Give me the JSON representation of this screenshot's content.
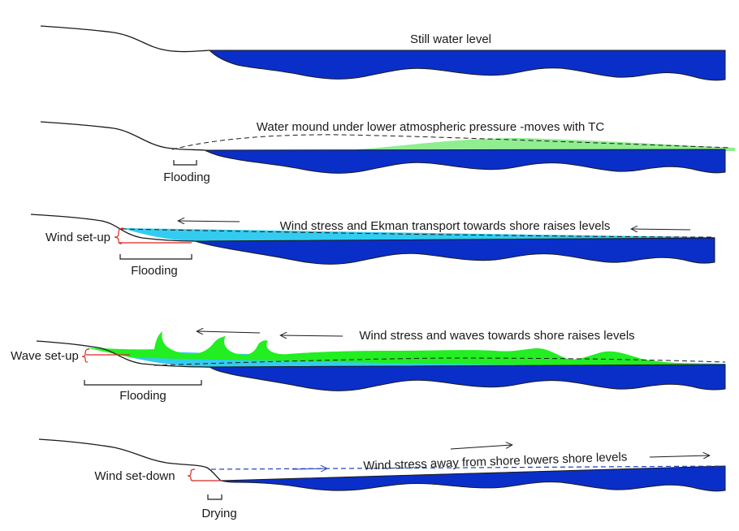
{
  "colors": {
    "deep_water": "#0a2fc8",
    "pressure_mound": "#90ee90",
    "wind_setup_water": "#33ccf0",
    "wave_crests": "#22ee22",
    "annotation_red": "#d9251d",
    "setdown_dash": "#1f3fbf"
  },
  "panels": [
    {
      "title": "Still water level"
    },
    {
      "title": "Water mound under lower atmospheric pressure -moves with TC",
      "bracket_label": "Flooding"
    },
    {
      "title": "Wind stress and Ekman transport towards shore raises levels",
      "side_label": "Wind set-up",
      "bracket_label": "Flooding"
    },
    {
      "title": "Wind stress and waves towards shore raises levels",
      "side_label": "Wave set-up",
      "bracket_label": "Flooding"
    },
    {
      "title": "Wind stress away from shore lowers shore levels",
      "side_label": "Wind set-down",
      "bracket_label": "Drying"
    }
  ]
}
